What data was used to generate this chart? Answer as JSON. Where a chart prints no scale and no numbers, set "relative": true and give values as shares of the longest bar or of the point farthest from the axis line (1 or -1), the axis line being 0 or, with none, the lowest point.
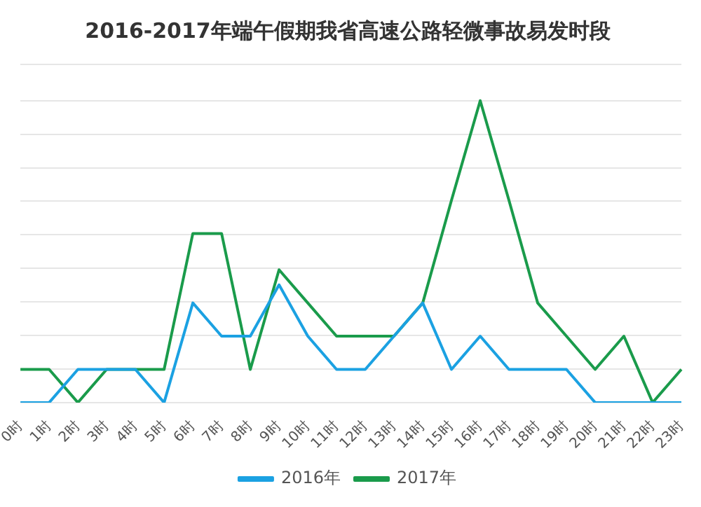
{
  "chart_data": {
    "type": "line",
    "title": "2016-2017年端午假期我省高速公路轻微事故易发时段",
    "relative": true,
    "grid": "y",
    "legend": "bottom",
    "marker": "none",
    "line_style": "solid",
    "categories": [
      "0时",
      "1时",
      "2时",
      "3时",
      "4时",
      "5时",
      "6时",
      "7时",
      "8时",
      "9时",
      "10时",
      "11时",
      "12时",
      "13时",
      "14时",
      "15时",
      "16时",
      "17时",
      "18时",
      "19时",
      "20时",
      "21时",
      "22时",
      "23时"
    ],
    "series": [
      {
        "name": "2016年",
        "color": "#1ba1e2",
        "values": [
          0,
          0,
          0.11,
          0.11,
          0.11,
          0,
          0.33,
          0.22,
          0.22,
          0.39,
          0.22,
          0.11,
          0.11,
          0.22,
          0.33,
          0.11,
          0.22,
          0.11,
          0.11,
          0.11,
          0,
          0,
          0,
          0
        ]
      },
      {
        "name": "2017年",
        "color": "#1a9b4b",
        "values": [
          0.11,
          0.11,
          0,
          0.11,
          0.11,
          0.11,
          0.56,
          0.56,
          0.11,
          0.44,
          0.33,
          0.22,
          0.22,
          0.22,
          0.33,
          0.67,
          1,
          0.67,
          0.33,
          0.22,
          0.11,
          0.22,
          0,
          0.11
        ]
      }
    ]
  }
}
